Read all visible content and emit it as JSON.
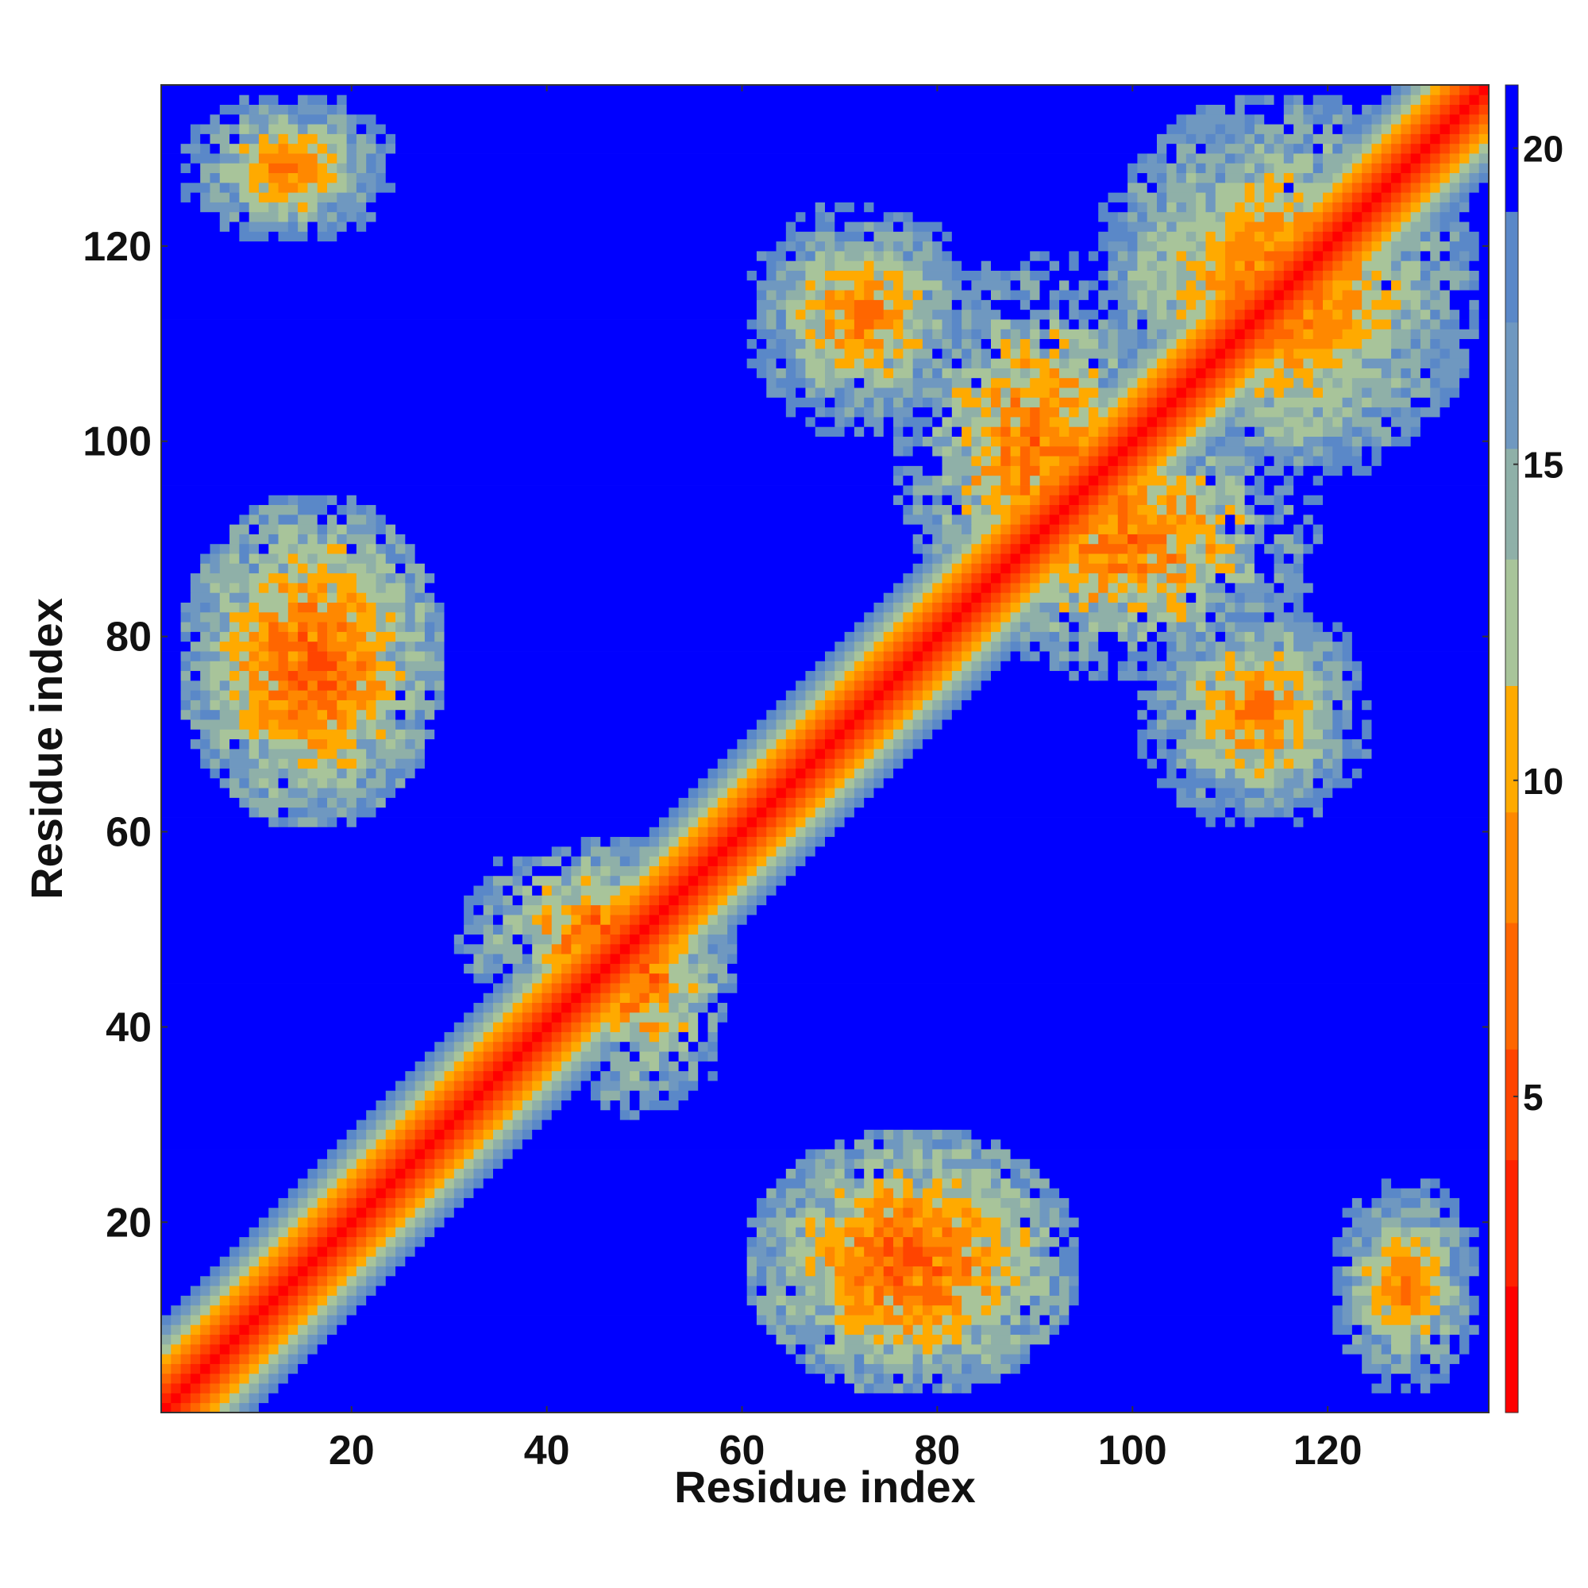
{
  "chart_data": {
    "type": "heatmap",
    "title": "",
    "xlabel": "Residue index",
    "ylabel": "Residue index",
    "xlim": [
      1,
      136
    ],
    "ylim": [
      1,
      136
    ],
    "n_residues": 136,
    "x_ticks": [
      20,
      40,
      60,
      80,
      100,
      120
    ],
    "y_ticks": [
      20,
      40,
      60,
      80,
      100,
      120
    ],
    "x_tick_labels": [
      "20",
      "40",
      "60",
      "80",
      "100",
      "120"
    ],
    "y_tick_labels": [
      "20",
      "40",
      "60",
      "80",
      "100",
      "120"
    ],
    "colorbar": {
      "range": [
        0,
        21
      ],
      "ticks": [
        5,
        10,
        15,
        20
      ],
      "tick_labels": [
        "5",
        "10",
        "15",
        "20"
      ],
      "colors": [
        "#ff0000",
        "#ff2200",
        "#ff4400",
        "#ff6600",
        "#ff8800",
        "#ffaa00",
        "#a8c49a",
        "#8fb0a8",
        "#6f98c0",
        "#5a88c8",
        "#0000ff"
      ]
    },
    "matrix": "symmetric pairwise residue distances (values clipped at 21); diagonal = 0",
    "features": {
      "diagonal_band_width_residues": 10,
      "contact_regions": [
        {
          "x": [
            2,
            30
          ],
          "y": [
            60,
            95
          ],
          "min_value": 3
        },
        {
          "x": [
            30,
            60
          ],
          "y": [
            40,
            60
          ],
          "min_value": 4
        },
        {
          "x": [
            60,
            95
          ],
          "y": [
            2,
            30
          ],
          "min_value": 3
        },
        {
          "x": [
            75,
            105
          ],
          "y": [
            80,
            120
          ],
          "min_value": 4
        },
        {
          "x": [
            95,
            136
          ],
          "y": [
            95,
            136
          ],
          "min_value": 4
        },
        {
          "x": [
            120,
            136
          ],
          "y": [
            2,
            25
          ],
          "min_value": 5
        },
        {
          "x": [
            2,
            25
          ],
          "y": [
            120,
            136
          ],
          "min_value": 5
        },
        {
          "x": [
            100,
            125
          ],
          "y": [
            60,
            85
          ],
          "min_value": 5
        },
        {
          "x": [
            60,
            85
          ],
          "y": [
            100,
            125
          ],
          "min_value": 5
        }
      ]
    }
  },
  "colors": {
    "background_far": "#0000ff",
    "contact_near": "#ff0000"
  }
}
